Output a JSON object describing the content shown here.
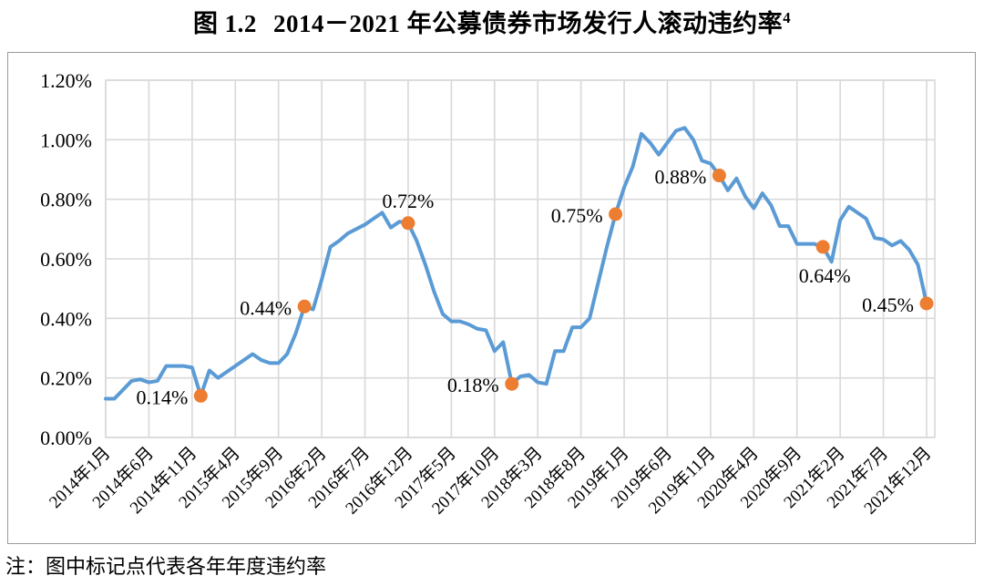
{
  "figure": {
    "title_prefix": "图 1.2",
    "title_main": "2014－2021 年公募债券市场发行人滚动违约率",
    "title_superscript": "4",
    "note": "注：图中标记点代表各年年度违约率"
  },
  "chart_data": {
    "type": "line",
    "title": "图 1.2 2014－2021 年公募债券市场发行人滚动违约率(4)",
    "xlabel": "",
    "ylabel": "",
    "unit": "percent",
    "grid": true,
    "legend": "none",
    "line_color": "#5B9BD5",
    "marker_color": "#ED7D31",
    "gridline_color": "#D9D9D9",
    "y_axis": {
      "min": 0.0,
      "max": 1.2,
      "tick_step": 0.2,
      "tick_labels": [
        "0.00%",
        "0.20%",
        "0.40%",
        "0.60%",
        "0.80%",
        "1.00%",
        "1.20%"
      ]
    },
    "x_axis": {
      "start": "2014-01",
      "end": "2021-12",
      "months_total": 96,
      "months_per_tick": 5,
      "tick_labels": [
        "2014年1月",
        "2014年6月",
        "2014年11月",
        "2015年4月",
        "2015年9月",
        "2016年2月",
        "2016年7月",
        "2016年12月",
        "2017年5月",
        "2017年10月",
        "2018年3月",
        "2018年8月",
        "2019年1月",
        "2019年6月",
        "2019年11月",
        "2020年4月",
        "2020年9月",
        "2021年2月",
        "2021年7月",
        "2021年12月"
      ]
    },
    "series": [
      {
        "name": "公募债券市场发行人滚动违约率",
        "values": [
          0.13,
          0.13,
          0.16,
          0.19,
          0.195,
          0.185,
          0.19,
          0.24,
          0.24,
          0.24,
          0.235,
          0.14,
          0.225,
          0.2,
          0.22,
          0.24,
          0.26,
          0.28,
          0.26,
          0.25,
          0.25,
          0.28,
          0.35,
          0.44,
          0.43,
          0.53,
          0.64,
          0.66,
          0.685,
          0.7,
          0.715,
          0.735,
          0.755,
          0.705,
          0.725,
          0.72,
          0.66,
          0.58,
          0.49,
          0.415,
          0.39,
          0.39,
          0.38,
          0.365,
          0.36,
          0.29,
          0.32,
          0.18,
          0.205,
          0.21,
          0.185,
          0.18,
          0.29,
          0.29,
          0.37,
          0.37,
          0.4,
          0.52,
          0.64,
          0.75,
          0.84,
          0.91,
          1.02,
          0.99,
          0.95,
          0.99,
          1.03,
          1.04,
          1.0,
          0.93,
          0.92,
          0.88,
          0.83,
          0.87,
          0.81,
          0.77,
          0.82,
          0.78,
          0.71,
          0.71,
          0.65,
          0.65,
          0.65,
          0.64,
          0.59,
          0.73,
          0.775,
          0.755,
          0.735,
          0.67,
          0.665,
          0.645,
          0.66,
          0.63,
          0.58,
          0.45
        ]
      }
    ],
    "annotated_points": [
      {
        "label": "0.14%",
        "month_index": 11,
        "month": "2014-12",
        "value": 0.14,
        "label_position": "left"
      },
      {
        "label": "0.44%",
        "month_index": 23,
        "month": "2015-12",
        "value": 0.44,
        "label_position": "left"
      },
      {
        "label": "0.72%",
        "month_index": 35,
        "month": "2016-12",
        "value": 0.72,
        "label_position": "above"
      },
      {
        "label": "0.18%",
        "month_index": 47,
        "month": "2017-12",
        "value": 0.18,
        "label_position": "left"
      },
      {
        "label": "0.75%",
        "month_index": 59,
        "month": "2018-12",
        "value": 0.75,
        "label_position": "left"
      },
      {
        "label": "0.88%",
        "month_index": 71,
        "month": "2019-12",
        "value": 0.88,
        "label_position": "left"
      },
      {
        "label": "0.64%",
        "month_index": 83,
        "month": "2020-12",
        "value": 0.64,
        "label_position": "below"
      },
      {
        "label": "0.45%",
        "month_index": 95,
        "month": "2021-12",
        "value": 0.45,
        "label_position": "left"
      }
    ]
  }
}
